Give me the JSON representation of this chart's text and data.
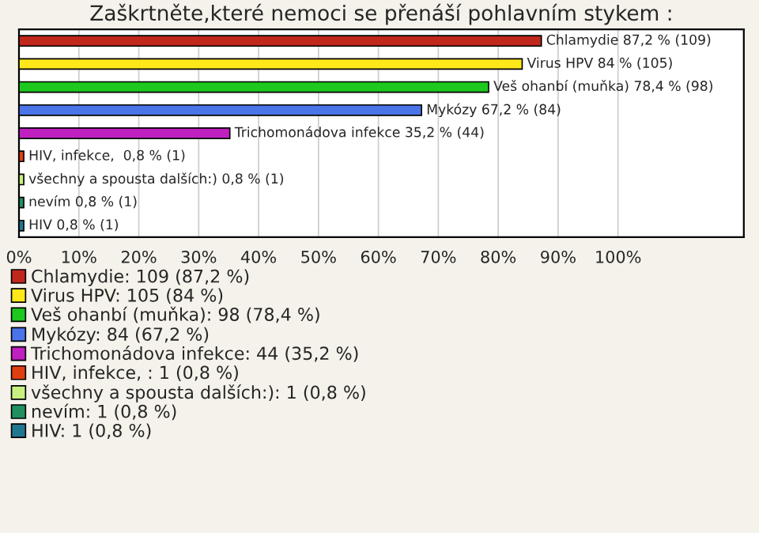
{
  "chart_data": {
    "type": "bar",
    "orientation": "horizontal",
    "title": "Zaškrtněte,které nemoci se přenáší pohlavním stykem :",
    "categories": [
      null
    ],
    "series": [
      {
        "name": "Chlamydie: 109 (87,2 %)",
        "color": "#c0281c",
        "values": [
          87.2
        ],
        "value_labels": [
          "Chlamydie 87,2 % (109)"
        ]
      },
      {
        "name": "Virus HPV: 105 (84 %)",
        "color": "#ffe81a",
        "values": [
          84
        ],
        "value_labels": [
          "Virus HPV 84 % (105)"
        ]
      },
      {
        "name": "Veš ohanbí (muňka): 98 (78,4 %)",
        "color": "#1ec81e",
        "values": [
          78.4
        ],
        "value_labels": [
          "Veš ohanbí (muňka) 78,4 % (98)"
        ]
      },
      {
        "name": "Mykózy: 84 (67,2 %)",
        "color": "#4a74e8",
        "values": [
          67.2
        ],
        "value_labels": [
          "Mykózy 67,2 % (84)"
        ]
      },
      {
        "name": "Trichomonádova infekce: 44 (35,2 %)",
        "color": "#c020c0",
        "values": [
          35.2
        ],
        "value_labels": [
          "Trichomonádova infekce 35,2 % (44)"
        ]
      },
      {
        "name": "HIV, infekce, : 1 (0,8 %)",
        "color": "#e04010",
        "values": [
          0.8
        ],
        "value_labels": [
          "HIV, infekce,  0,8 % (1)"
        ]
      },
      {
        "name": "všechny a spousta dalších:): 1 (0,8 %)",
        "color": "#c8f080",
        "values": [
          0.8
        ],
        "value_labels": [
          "všechny a spousta dalších:) 0,8 % (1)"
        ]
      },
      {
        "name": "nevím: 1 (0,8 %)",
        "color": "#209060",
        "values": [
          0.8
        ],
        "value_labels": [
          "nevím 0,8 % (1)"
        ]
      },
      {
        "name": "HIV: 1 (0,8 %)",
        "color": "#207890",
        "values": [
          0.8
        ],
        "value_labels": [
          "HIV 0,8 % (1)"
        ]
      }
    ],
    "xlim": [
      0,
      121
    ],
    "xticks": [
      {
        "value": 0,
        "label": "0%"
      },
      {
        "value": 10,
        "label": "10%"
      },
      {
        "value": 20,
        "label": "20%"
      },
      {
        "value": 30,
        "label": "30%"
      },
      {
        "value": 40,
        "label": "40%"
      },
      {
        "value": 50,
        "label": "50%"
      },
      {
        "value": 60,
        "label": "60%"
      },
      {
        "value": 70,
        "label": "70%"
      },
      {
        "value": 80,
        "label": "80%"
      },
      {
        "value": 90,
        "label": "90%"
      },
      {
        "value": 100,
        "label": "100%"
      }
    ],
    "grid": "x",
    "legend": "bottom",
    "tick_labels": "x"
  }
}
